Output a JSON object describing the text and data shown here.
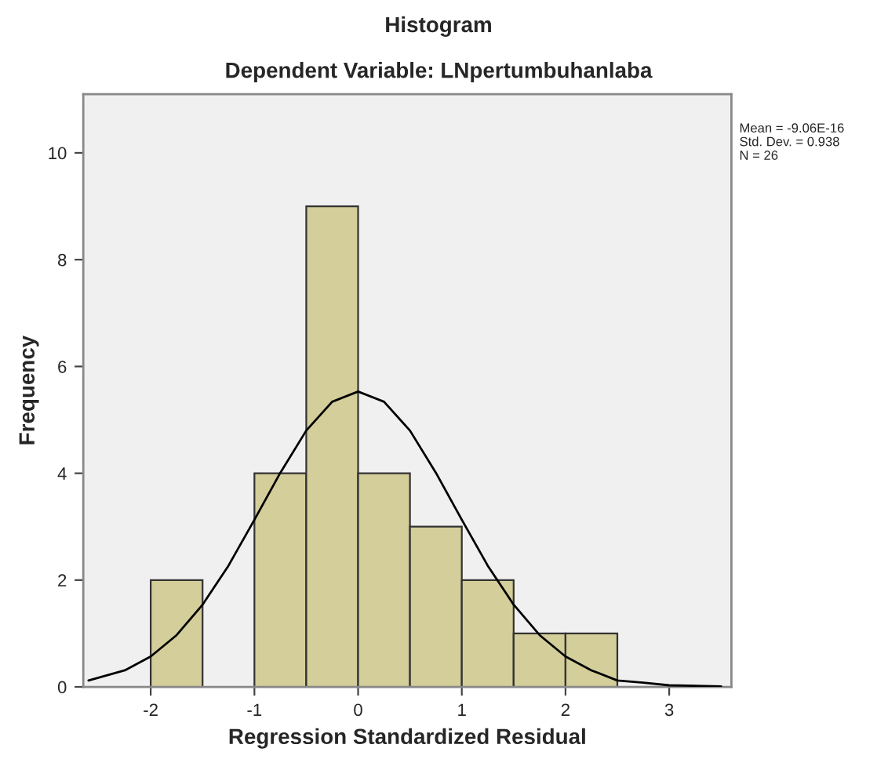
{
  "chart_data": {
    "type": "histogram",
    "title": "Histogram",
    "subtitle": "Dependent Variable: LNpertumbuhanlaba",
    "xlabel": "Regression Standardized Residual",
    "ylabel": "Frequency",
    "bins": [
      -2,
      -1.5,
      -1,
      -0.5,
      0,
      0.5,
      1,
      1.5,
      2,
      2.5
    ],
    "values": [
      2,
      0,
      4,
      9,
      4,
      3,
      2,
      1,
      1
    ],
    "color": "#d3ce9a",
    "series": [
      {
        "type": "line",
        "color": "#000000",
        "x": [
          -2.6,
          -2.25,
          -2,
          -1.75,
          -1.5,
          -1.25,
          -1,
          -0.75,
          -0.5,
          -0.25,
          0,
          0.25,
          0.5,
          0.75,
          1,
          1.25,
          1.5,
          1.75,
          2,
          2.25,
          2.5,
          2.75,
          3,
          3.5
        ],
        "values": [
          0.12,
          0.31,
          0.57,
          0.97,
          1.54,
          2.27,
          3.13,
          4.01,
          4.8,
          5.34,
          5.53,
          5.34,
          4.8,
          4.01,
          3.13,
          2.27,
          1.54,
          0.97,
          0.57,
          0.31,
          0.12,
          0.08,
          0.03,
          0.01
        ]
      }
    ],
    "xlim": [
      -2.65,
      3.6
    ],
    "ylim": [
      0,
      11.1
    ],
    "xticks": [
      -2,
      -1,
      0,
      1,
      2,
      3
    ],
    "yticks": [
      0,
      2,
      4,
      6,
      8,
      10
    ],
    "grid": false,
    "legend": false,
    "annotations": [
      "Mean = -9.06E-16",
      "Std. Dev. = 0.938",
      "N = 26"
    ]
  }
}
